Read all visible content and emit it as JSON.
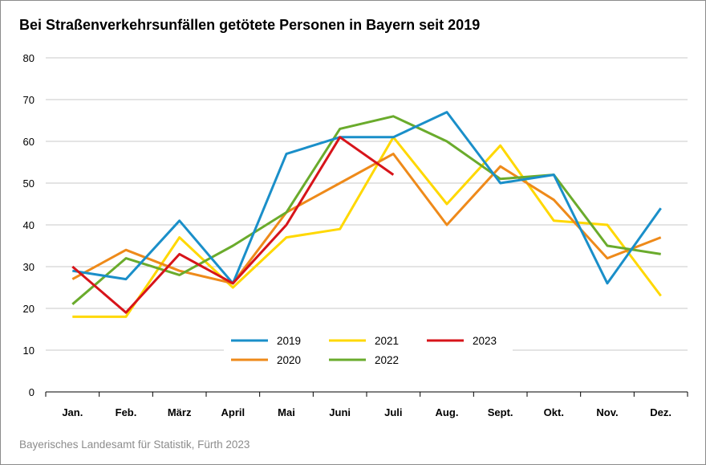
{
  "title": "Bei Straßenverkehrsunfällen getötete Personen in Bayern seit 2019",
  "source": "Bayerisches Landesamt für Statistik, Fürth 2023",
  "chart_data": {
    "type": "line",
    "title": "Bei Straßenverkehrsunfällen getötete Personen in Bayern seit 2019",
    "xlabel": "",
    "ylabel": "",
    "ylim": [
      0,
      80
    ],
    "yticks": [
      0,
      10,
      20,
      30,
      40,
      50,
      60,
      70,
      80
    ],
    "grid": true,
    "legend_position": "center-bottom",
    "categories": [
      "Jan.",
      "Feb.",
      "März",
      "April",
      "Mai",
      "Juni",
      "Juli",
      "Aug.",
      "Sept.",
      "Okt.",
      "Nov.",
      "Dez."
    ],
    "series": [
      {
        "name": "2019",
        "color": "#1a8fc9",
        "values": [
          29,
          27,
          41,
          26,
          57,
          61,
          61,
          67,
          50,
          52,
          26,
          44
        ]
      },
      {
        "name": "2020",
        "color": "#ee8a1a",
        "values": [
          27,
          34,
          29,
          26,
          43,
          50,
          57,
          40,
          54,
          46,
          32,
          37
        ]
      },
      {
        "name": "2021",
        "color": "#ffd800",
        "values": [
          18,
          18,
          37,
          25,
          37,
          39,
          61,
          45,
          59,
          41,
          40,
          23
        ]
      },
      {
        "name": "2022",
        "color": "#6aab2c",
        "values": [
          21,
          32,
          28,
          35,
          43,
          63,
          66,
          60,
          51,
          52,
          35,
          33
        ]
      },
      {
        "name": "2023",
        "color": "#d7141a",
        "values": [
          30,
          19,
          33,
          26,
          40,
          61,
          52,
          null,
          null,
          null,
          null,
          null
        ]
      }
    ]
  }
}
